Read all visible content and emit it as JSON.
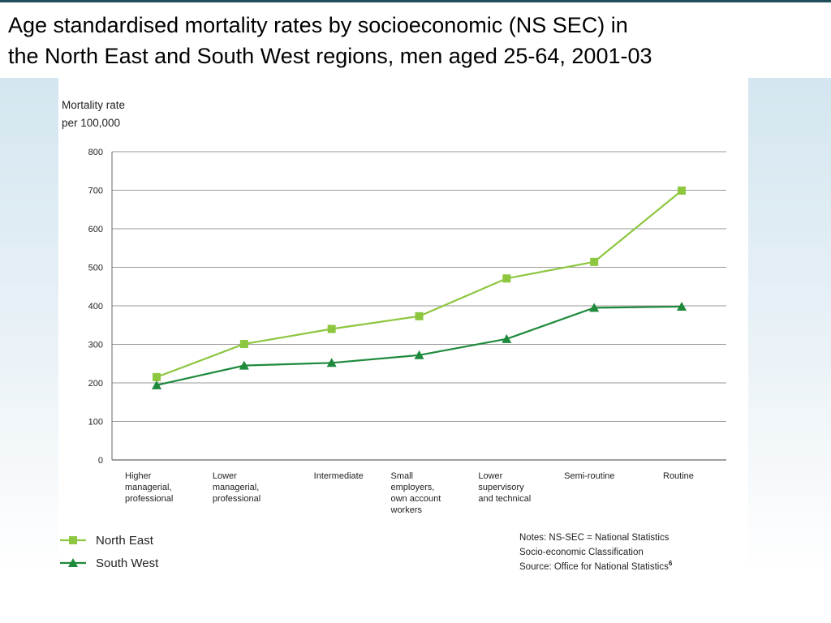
{
  "title_lines": [
    "Age standardised mortality rates by socioeconomic (NS SEC) in",
    "the North East and South West regions, men aged 25-64, 2001-03"
  ],
  "chart_data": {
    "type": "line",
    "ylabel_lines": [
      "Mortality rate",
      "per 100,000"
    ],
    "ylim": [
      0,
      800
    ],
    "yticks": [
      0,
      100,
      200,
      300,
      400,
      500,
      600,
      700,
      800
    ],
    "grid": true,
    "legend_position": "bottom-left",
    "categories": [
      [
        "Higher",
        "managerial,",
        "professional"
      ],
      [
        "Lower",
        "managerial,",
        "professional"
      ],
      [
        "Intermediate"
      ],
      [
        "Small",
        "employers,",
        "own account",
        "workers"
      ],
      [
        "Lower",
        "supervisory",
        "and technical"
      ],
      [
        "Semi-routine"
      ],
      [
        "Routine"
      ]
    ],
    "series": [
      {
        "name": "North East",
        "marker": "square",
        "color": "#8dc63f",
        "values": [
          215,
          301,
          340,
          373,
          471,
          514,
          699
        ]
      },
      {
        "name": "South West",
        "marker": "triangle",
        "color": "#1e8a3c",
        "values": [
          194,
          245,
          252,
          272,
          314,
          395,
          398
        ]
      }
    ]
  },
  "notes": {
    "line1": "Notes: NS-SEC = National Statistics",
    "line2": "Socio-economic Classification",
    "line3": "Source: Office for National Statistics",
    "superscript": "6"
  }
}
